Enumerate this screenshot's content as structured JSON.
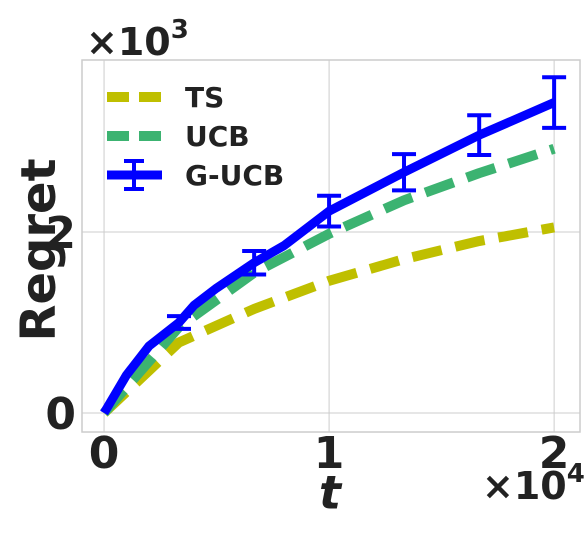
{
  "chart_data": {
    "type": "line",
    "xlabel": "t",
    "ylabel": "Regret",
    "x_offset": "×10",
    "x_offset_exp": "4",
    "y_offset": "×10",
    "y_offset_exp": "3",
    "xlim": [
      -0.098,
      2.115
    ],
    "ylim": [
      -0.21,
      3.9
    ],
    "xticks": [
      0,
      1,
      2
    ],
    "yticks": [
      0,
      2
    ],
    "grid": true,
    "legend": "upper left",
    "series": [
      {
        "name": "TS",
        "color": "#bfbf00",
        "style": "dashed",
        "x": [
          0,
          0.333,
          0.667,
          1.0,
          1.333,
          1.667,
          2.0
        ],
        "values": [
          0,
          0.78,
          1.15,
          1.46,
          1.7,
          1.9,
          2.05
        ]
      },
      {
        "name": "UCB",
        "color": "#3cb371",
        "style": "dashed",
        "x": [
          0,
          0.333,
          0.667,
          1.0,
          1.333,
          1.667,
          2.0
        ],
        "values": [
          0,
          0.95,
          1.55,
          1.98,
          2.35,
          2.65,
          2.92
        ]
      },
      {
        "name": "G-UCB",
        "color": "#0000ff",
        "style": "solid",
        "x": [
          0,
          0.1,
          0.2,
          0.333,
          0.4,
          0.5,
          0.667,
          0.8,
          1.0,
          1.333,
          1.667,
          2.0
        ],
        "values": [
          0,
          0.42,
          0.74,
          1.0,
          1.19,
          1.38,
          1.66,
          1.85,
          2.23,
          2.66,
          3.07,
          3.43
        ],
        "errors": [
          null,
          null,
          null,
          0.07,
          null,
          null,
          0.13,
          null,
          0.17,
          0.2,
          0.22,
          0.28
        ]
      }
    ]
  }
}
